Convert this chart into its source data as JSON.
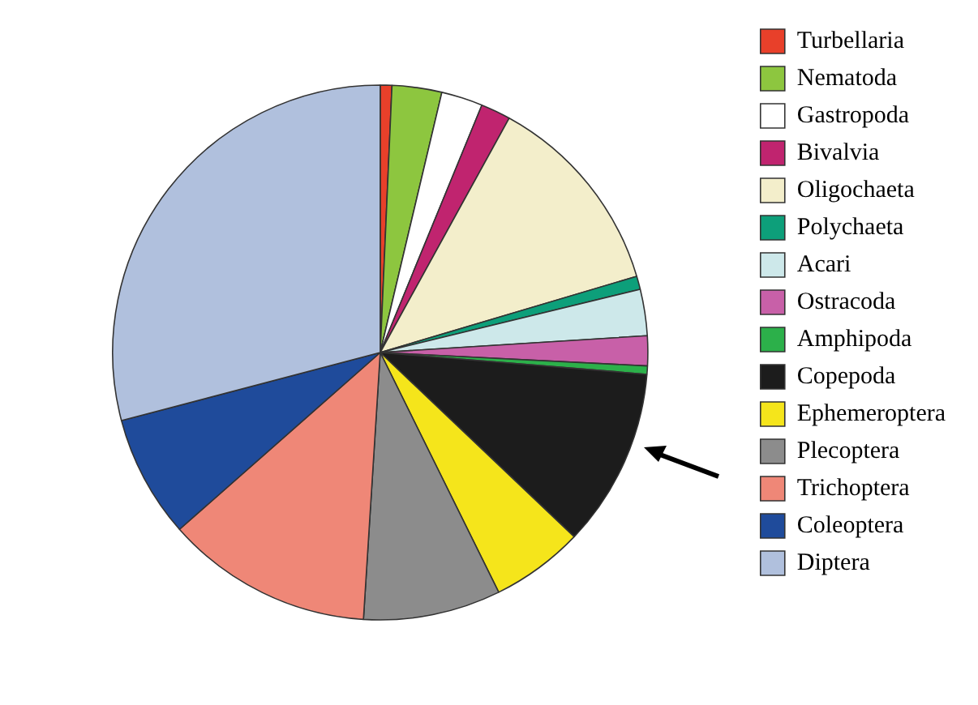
{
  "chart_data": {
    "type": "pie",
    "categories": [
      "Turbellaria",
      "Nematoda",
      "Gastropoda",
      "Bivalvia",
      "Oligochaeta",
      "Polychaeta",
      "Acari",
      "Ostracoda",
      "Amphipoda",
      "Copepoda",
      "Ephemeroptera",
      "Plecoptera",
      "Trichoptera",
      "Coleoptera",
      "Diptera"
    ],
    "values": [
      0.7,
      3,
      2.5,
      1.8,
      12.4,
      0.8,
      2.8,
      1.8,
      0.5,
      10.8,
      5.6,
      8.3,
      12.5,
      7.4,
      29.1
    ],
    "colors": [
      "#e8402a",
      "#8dc63f",
      "#ffffff",
      "#c0246f",
      "#f3eecb",
      "#0d9f7a",
      "#cde8ea",
      "#c860a8",
      "#2cb04a",
      "#1c1c1c",
      "#f5e51b",
      "#8c8c8c",
      "#ef8777",
      "#1f4b9b",
      "#b0c0dd"
    ],
    "legend": "right"
  }
}
